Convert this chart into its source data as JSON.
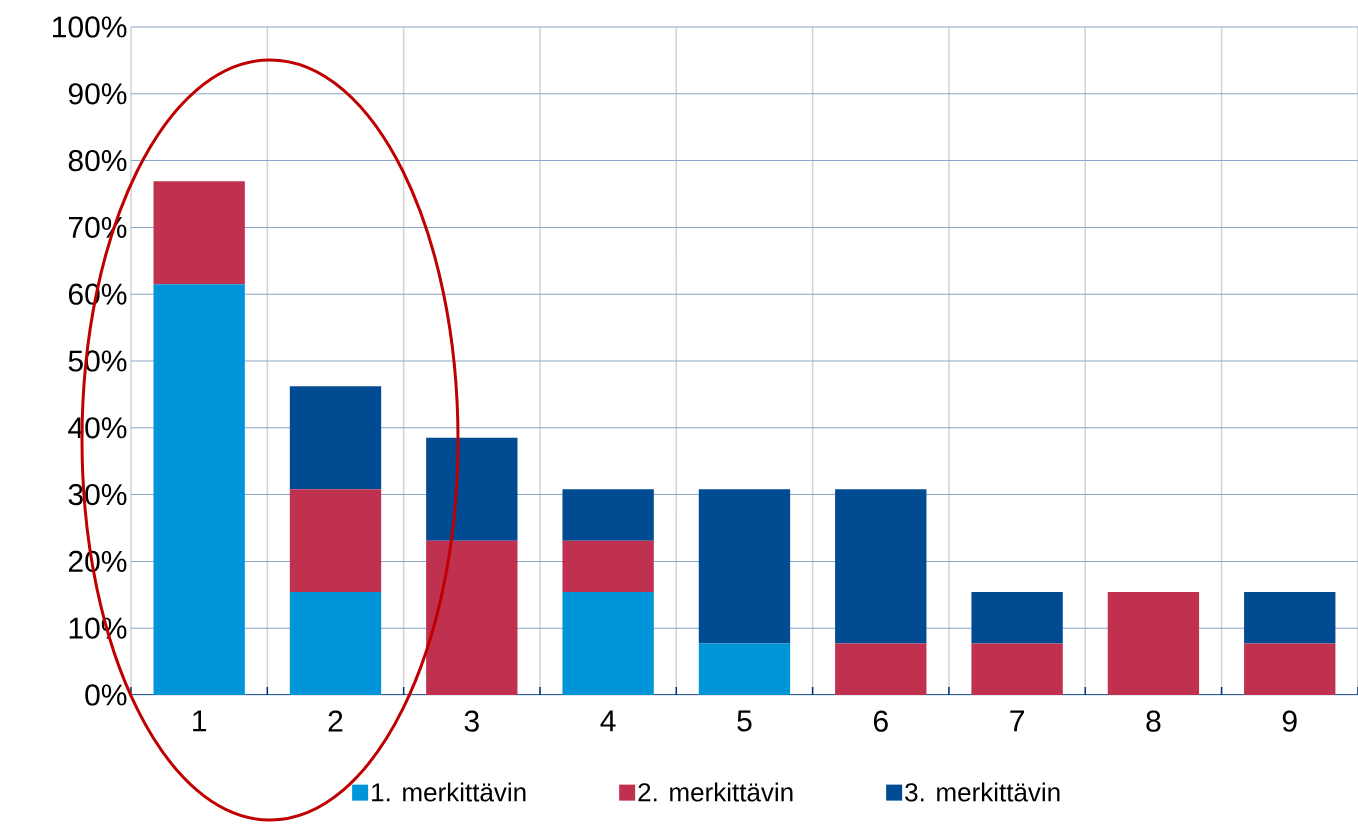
{
  "chart_data": {
    "type": "bar",
    "stacked": true,
    "categories": [
      "1",
      "2",
      "3",
      "4",
      "5",
      "6",
      "7",
      "8",
      "9"
    ],
    "series": [
      {
        "name": "1. merkittävin",
        "color": "#0095d9",
        "values": [
          61.5,
          15.4,
          null,
          15.4,
          7.7,
          null,
          null,
          null,
          null
        ]
      },
      {
        "name": "2. merkittävin",
        "color": "#c0314f",
        "values": [
          15.4,
          15.4,
          23.1,
          7.7,
          null,
          7.7,
          7.7,
          15.4,
          7.7
        ]
      },
      {
        "name": "3. merkittävin",
        "color": "#004b91",
        "values": [
          null,
          15.4,
          15.4,
          7.7,
          23.1,
          23.1,
          7.7,
          null,
          7.7
        ]
      }
    ],
    "ylim": [
      0,
      100
    ],
    "yticks": [
      {
        "value": 0,
        "label": "0%"
      },
      {
        "value": 10,
        "label": "10%"
      },
      {
        "value": 20,
        "label": "20%"
      },
      {
        "value": 30,
        "label": "30%"
      },
      {
        "value": 40,
        "label": "40%"
      },
      {
        "value": 50,
        "label": "50%"
      },
      {
        "value": 60,
        "label": "60%"
      },
      {
        "value": 70,
        "label": "70%"
      },
      {
        "value": 80,
        "label": "80%"
      },
      {
        "value": 90,
        "label": "90%"
      },
      {
        "value": 100,
        "label": "100%"
      }
    ],
    "grid": true,
    "legend": "bottom"
  }
}
